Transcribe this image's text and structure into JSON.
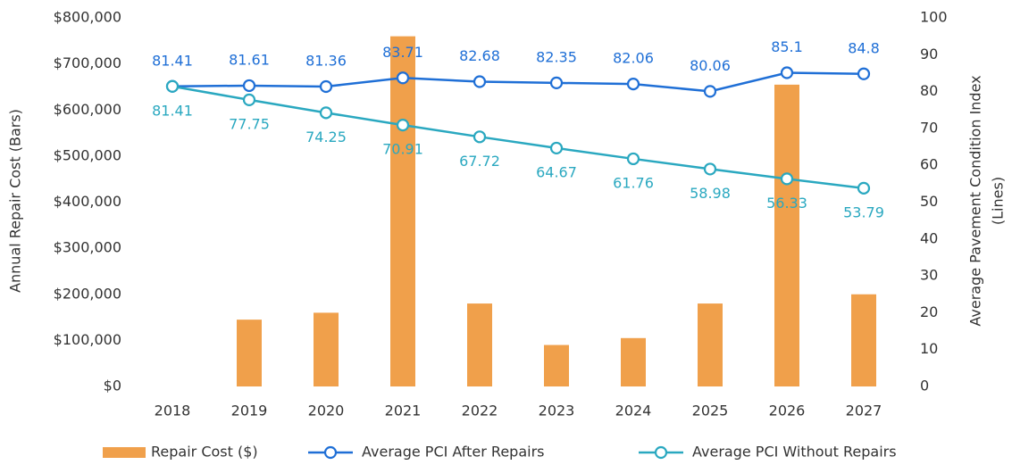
{
  "chart_data": {
    "type": "combo",
    "categories": [
      "2018",
      "2019",
      "2020",
      "2021",
      "2022",
      "2023",
      "2024",
      "2025",
      "2026",
      "2027"
    ],
    "series": [
      {
        "name": "Repair Cost ($)",
        "type": "bar",
        "axis": "y",
        "color": "#f0a04b",
        "values": [
          0,
          145000,
          160000,
          760000,
          180000,
          90000,
          105000,
          180000,
          655000,
          200000
        ]
      },
      {
        "name": "Average PCI After Repairs",
        "type": "line",
        "axis": "y2",
        "color": "#1f6fd6",
        "values": [
          81.41,
          81.61,
          81.36,
          83.71,
          82.68,
          82.35,
          82.06,
          80.06,
          85.1,
          84.8
        ]
      },
      {
        "name": "Average PCI Without Repairs",
        "type": "line",
        "axis": "y2",
        "color": "#2aa8c0",
        "values": [
          81.41,
          77.75,
          74.25,
          70.91,
          67.72,
          64.67,
          61.76,
          58.98,
          56.33,
          53.79
        ]
      }
    ],
    "ylabel": "Annual Repair Cost (Bars)",
    "y2label": [
      "Average Pavement Condition Index",
      "(Lines)"
    ],
    "ylim": [
      0,
      800000
    ],
    "yticks": [
      {
        "value": 0,
        "label": "$0"
      },
      {
        "value": 100000,
        "label": "$100,000"
      },
      {
        "value": 200000,
        "label": "$200,000"
      },
      {
        "value": 300000,
        "label": "$300,000"
      },
      {
        "value": 400000,
        "label": "$400,000"
      },
      {
        "value": 500000,
        "label": "$500,000"
      },
      {
        "value": 600000,
        "label": "$600,000"
      },
      {
        "value": 700000,
        "label": "$700,000"
      },
      {
        "value": 800000,
        "label": "$800,000"
      }
    ],
    "y2lim": [
      0,
      100
    ],
    "y2ticks": [
      0,
      10,
      20,
      30,
      40,
      50,
      60,
      70,
      80,
      90,
      100
    ],
    "grid": false,
    "legend": "bottom"
  }
}
